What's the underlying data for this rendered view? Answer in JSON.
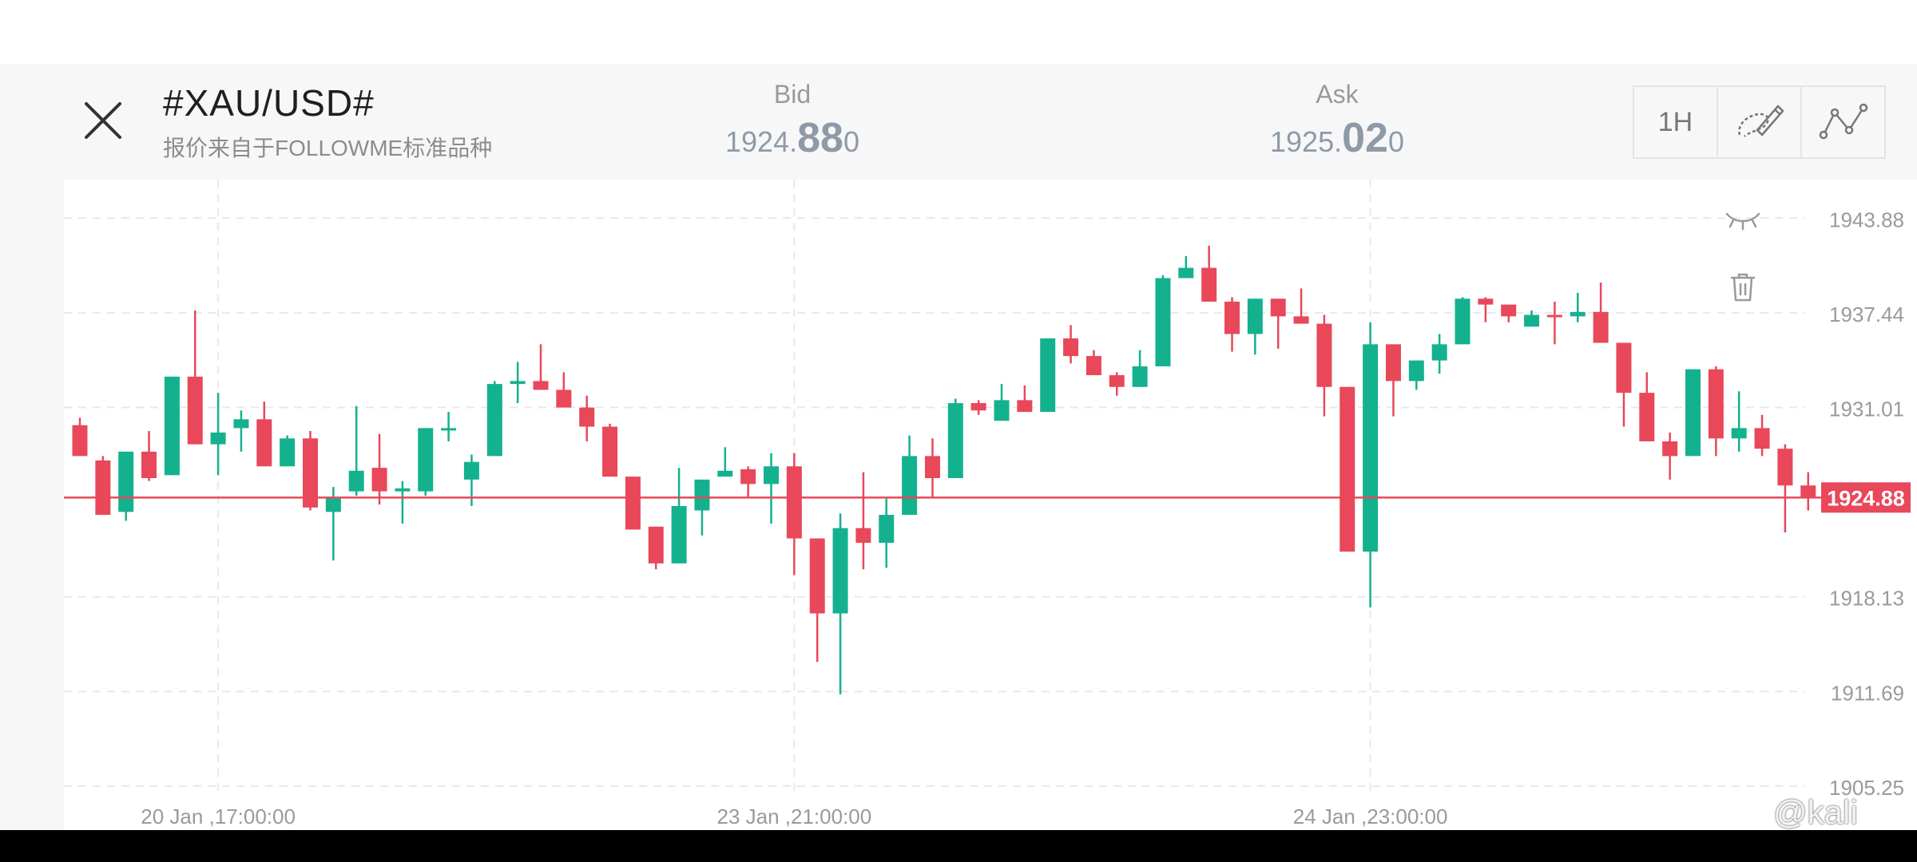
{
  "header": {
    "symbol": "#XAU/USD#",
    "subtitle": "报价来自于FOLLOWME标准品种",
    "bid": {
      "label": "Bid",
      "pre": "1924.",
      "big": "88",
      "post": "0"
    },
    "ask": {
      "label": "Ask",
      "pre": "1925.",
      "big": "02",
      "post": "0"
    }
  },
  "toolbar": {
    "timeframe": "1H"
  },
  "icons": [
    "close-icon",
    "draw-brush-icon",
    "indicator-line-icon",
    "eye-closed-icon",
    "trash-icon"
  ],
  "colors": {
    "up": "#14b18f",
    "down": "#e8485a",
    "current_price": "#e8485a",
    "grid": "#e9e9ec",
    "axis_text": "#9a9a9a"
  },
  "watermark": "@kali",
  "chart_data": {
    "type": "candlestick",
    "y_ticks": [
      "1943.88",
      "1937.44",
      "1931.01",
      "1924.88",
      "1918.13",
      "1911.69",
      "1905.25"
    ],
    "ylim": [
      1905.25,
      1946.5
    ],
    "x_tick_labels": [
      {
        "label": "20 Jan ,17:00:00",
        "index": 6
      },
      {
        "label": "23 Jan ,21:00:00",
        "index": 31
      },
      {
        "label": "24 Jan ,23:00:00",
        "index": 56
      }
    ],
    "current_price": 1924.88,
    "current_price_label": "1924.88",
    "candles": [
      [
        1929.8,
        1927.7,
        1930.3,
        1927.7
      ],
      [
        1927.4,
        1923.7,
        1927.7,
        1923.7
      ],
      [
        1923.9,
        1928.0,
        1928.0,
        1923.3
      ],
      [
        1928.0,
        1926.2,
        1929.4,
        1926.0
      ],
      [
        1926.4,
        1933.1,
        1933.1,
        1926.4
      ],
      [
        1933.1,
        1928.5,
        1937.6,
        1928.5
      ],
      [
        1928.5,
        1929.3,
        1932.0,
        1926.4
      ],
      [
        1929.6,
        1930.2,
        1930.8,
        1928.0
      ],
      [
        1930.2,
        1927.0,
        1931.4,
        1927.0
      ],
      [
        1927.0,
        1928.9,
        1929.1,
        1927.0
      ],
      [
        1928.9,
        1924.2,
        1929.4,
        1924.0
      ],
      [
        1923.9,
        1924.9,
        1925.6,
        1920.6
      ],
      [
        1925.3,
        1926.7,
        1931.1,
        1925.0
      ],
      [
        1926.9,
        1925.3,
        1929.2,
        1924.4
      ],
      [
        1925.3,
        1925.5,
        1926.0,
        1923.1
      ],
      [
        1925.3,
        1929.6,
        1929.6,
        1925.0
      ],
      [
        1929.6,
        1929.6,
        1930.7,
        1928.7
      ],
      [
        1926.1,
        1927.3,
        1927.8,
        1924.3
      ],
      [
        1927.7,
        1932.6,
        1932.8,
        1927.7
      ],
      [
        1932.6,
        1932.8,
        1934.1,
        1931.3
      ],
      [
        1932.8,
        1932.2,
        1935.3,
        1932.2
      ],
      [
        1932.2,
        1931.0,
        1933.4,
        1931.0
      ],
      [
        1931.0,
        1929.7,
        1931.8,
        1928.7
      ],
      [
        1929.7,
        1926.3,
        1929.9,
        1926.3
      ],
      [
        1926.3,
        1922.7,
        1926.3,
        1922.7
      ],
      [
        1922.9,
        1920.4,
        1922.9,
        1920.0
      ],
      [
        1920.4,
        1924.3,
        1926.9,
        1920.4
      ],
      [
        1924.0,
        1926.1,
        1926.1,
        1922.3
      ],
      [
        1926.3,
        1926.7,
        1928.3,
        1926.3
      ],
      [
        1926.8,
        1925.8,
        1927.0,
        1924.9
      ],
      [
        1925.8,
        1927.0,
        1927.9,
        1923.1
      ],
      [
        1927.0,
        1922.1,
        1927.9,
        1919.6
      ],
      [
        1922.1,
        1917.0,
        1922.1,
        1913.7
      ],
      [
        1917.0,
        1922.8,
        1923.8,
        1911.5
      ],
      [
        1922.8,
        1921.8,
        1926.6,
        1920.0
      ],
      [
        1921.8,
        1923.7,
        1924.8,
        1920.1
      ],
      [
        1923.7,
        1927.7,
        1929.1,
        1923.7
      ],
      [
        1927.7,
        1926.2,
        1928.9,
        1924.9
      ],
      [
        1926.2,
        1931.3,
        1931.6,
        1926.2
      ],
      [
        1931.3,
        1930.8,
        1931.5,
        1930.5
      ],
      [
        1930.1,
        1931.5,
        1932.6,
        1930.1
      ],
      [
        1931.5,
        1930.7,
        1932.5,
        1930.7
      ],
      [
        1930.7,
        1935.7,
        1935.7,
        1930.7
      ],
      [
        1935.7,
        1934.5,
        1936.6,
        1934.0
      ],
      [
        1934.5,
        1933.2,
        1934.9,
        1933.2
      ],
      [
        1933.2,
        1932.4,
        1933.4,
        1931.8
      ],
      [
        1932.4,
        1933.8,
        1934.9,
        1932.4
      ],
      [
        1933.8,
        1939.8,
        1940.0,
        1933.8
      ],
      [
        1939.8,
        1940.5,
        1941.3,
        1939.8
      ],
      [
        1940.5,
        1938.2,
        1942.0,
        1938.2
      ],
      [
        1938.2,
        1936.0,
        1938.5,
        1934.8
      ],
      [
        1936.0,
        1938.4,
        1938.4,
        1934.6
      ],
      [
        1938.4,
        1937.2,
        1938.4,
        1935.0
      ],
      [
        1937.2,
        1936.7,
        1939.1,
        1936.7
      ],
      [
        1936.7,
        1932.4,
        1937.3,
        1930.4
      ],
      [
        1932.4,
        1921.2,
        1932.4,
        1921.2
      ],
      [
        1921.2,
        1935.3,
        1936.8,
        1917.4
      ],
      [
        1935.3,
        1932.8,
        1935.3,
        1930.4
      ],
      [
        1932.8,
        1934.2,
        1934.2,
        1932.2
      ],
      [
        1934.2,
        1935.3,
        1936.0,
        1933.3
      ],
      [
        1935.3,
        1938.4,
        1938.5,
        1935.3
      ],
      [
        1938.4,
        1938.0,
        1938.5,
        1936.8
      ],
      [
        1938.0,
        1937.2,
        1938.0,
        1936.8
      ],
      [
        1936.5,
        1937.3,
        1937.6,
        1936.5
      ],
      [
        1937.3,
        1937.2,
        1938.2,
        1935.3
      ],
      [
        1937.2,
        1937.5,
        1938.8,
        1936.8
      ],
      [
        1937.5,
        1935.4,
        1939.5,
        1935.4
      ],
      [
        1935.4,
        1932.0,
        1935.4,
        1929.7
      ],
      [
        1932.0,
        1928.7,
        1933.4,
        1928.7
      ],
      [
        1928.7,
        1927.7,
        1929.3,
        1926.1
      ],
      [
        1927.7,
        1933.6,
        1933.6,
        1927.7
      ],
      [
        1933.6,
        1928.9,
        1933.8,
        1927.7
      ],
      [
        1928.9,
        1929.6,
        1932.1,
        1928.0
      ],
      [
        1929.6,
        1928.2,
        1930.5,
        1927.7
      ],
      [
        1928.2,
        1925.7,
        1928.5,
        1922.5
      ],
      [
        1925.7,
        1924.9,
        1926.6,
        1924.0
      ]
    ]
  }
}
